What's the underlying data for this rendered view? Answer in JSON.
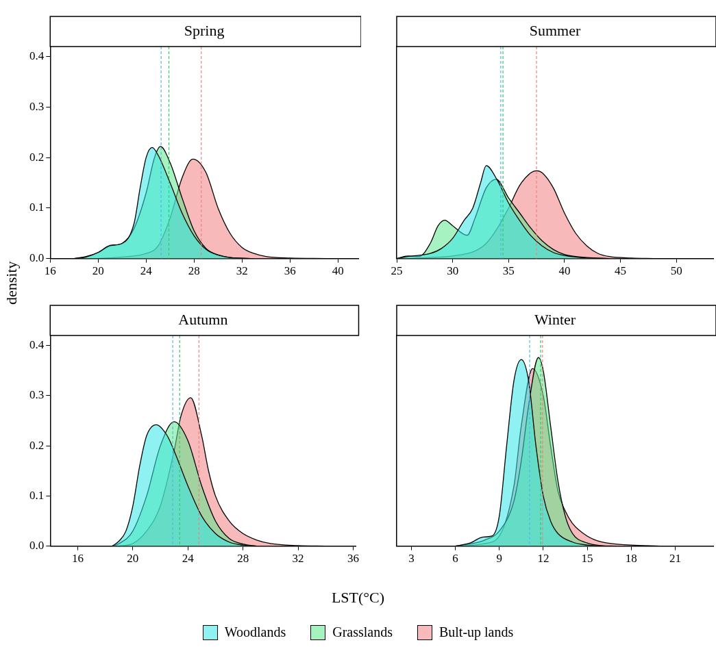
{
  "chart_data": [
    {
      "type": "area",
      "title": "Spring",
      "ylabel": "density",
      "xlim": [
        16,
        41.7
      ],
      "xticks": [
        16,
        20,
        24,
        28,
        32,
        36,
        40
      ],
      "ylim": [
        0,
        0.42
      ],
      "yticks": [
        {
          "value": 0,
          "label": "0.0"
        },
        {
          "value": 0.1,
          "label": "0.1"
        },
        {
          "value": 0.2,
          "label": "0.2"
        },
        {
          "value": 0.3,
          "label": "0.3"
        },
        {
          "value": 0.4,
          "label": "0.4"
        }
      ],
      "legend": "bottom",
      "series": [
        {
          "name": "Woodlands",
          "color": "#33e6e6",
          "x": [
            18,
            19,
            20,
            21,
            22,
            23,
            23.5,
            24,
            24.5,
            25,
            26,
            27,
            28,
            29,
            30,
            31,
            33
          ],
          "values": [
            0,
            0.003,
            0.012,
            0.026,
            0.03,
            0.07,
            0.14,
            0.2,
            0.22,
            0.205,
            0.15,
            0.09,
            0.045,
            0.018,
            0.007,
            0.002,
            0
          ]
        },
        {
          "name": "Grasslands",
          "color": "#5ee88e",
          "x": [
            18,
            19,
            20,
            21,
            22,
            23,
            24,
            24.7,
            25.2,
            26,
            27,
            28,
            29,
            30,
            31,
            33
          ],
          "values": [
            0,
            0.004,
            0.012,
            0.025,
            0.03,
            0.06,
            0.13,
            0.2,
            0.222,
            0.19,
            0.12,
            0.055,
            0.02,
            0.007,
            0.002,
            0
          ]
        },
        {
          "name": "Bult-up lands",
          "color": "#f08080",
          "x": [
            20,
            22,
            24,
            25,
            26,
            27,
            27.9,
            29,
            30,
            31,
            32,
            33,
            34,
            36,
            39
          ],
          "values": [
            0,
            0.003,
            0.01,
            0.025,
            0.08,
            0.16,
            0.197,
            0.17,
            0.1,
            0.05,
            0.022,
            0.01,
            0.004,
            0.001,
            0
          ]
        }
      ],
      "ref_lines": [
        {
          "axis": "x",
          "value": 25.25,
          "color": "#56b4e9",
          "line_style": "dashed"
        },
        {
          "axis": "x",
          "value": 25.9,
          "color": "#2ecc71",
          "line_style": "dashed"
        },
        {
          "axis": "x",
          "value": 28.6,
          "color": "#f08080",
          "line_style": "dashed"
        }
      ]
    },
    {
      "type": "area",
      "title": "Summer",
      "tick_labels": "x",
      "xlim": [
        25,
        53.3
      ],
      "xticks": [
        25,
        30,
        35,
        40,
        45,
        50
      ],
      "ylim": [
        0,
        0.42
      ],
      "series": [
        {
          "color": "#33e6e6",
          "x": [
            25,
            26,
            28,
            29,
            30,
            31,
            31.8,
            32.5,
            33,
            34,
            35,
            36,
            37,
            38,
            39,
            40,
            42,
            44
          ],
          "values": [
            0,
            0.004,
            0.01,
            0.02,
            0.04,
            0.075,
            0.1,
            0.15,
            0.184,
            0.155,
            0.11,
            0.075,
            0.045,
            0.025,
            0.012,
            0.006,
            0.001,
            0
          ]
        },
        {
          "color": "#5ee88e",
          "x": [
            25,
            26,
            27,
            28,
            28.7,
            29.3,
            30,
            31.3,
            32,
            33,
            33.9,
            35,
            36,
            37,
            38,
            39,
            40,
            42,
            44
          ],
          "values": [
            0,
            0.005,
            0.004,
            0.03,
            0.065,
            0.076,
            0.065,
            0.046,
            0.08,
            0.14,
            0.157,
            0.12,
            0.09,
            0.06,
            0.035,
            0.018,
            0.008,
            0.002,
            0
          ]
        },
        {
          "color": "#f08080",
          "x": [
            26,
            28,
            30,
            32,
            33,
            34,
            35,
            36,
            37,
            37.5,
            38,
            39,
            40,
            41,
            42,
            43,
            44,
            46,
            48
          ],
          "values": [
            0,
            0.002,
            0.005,
            0.015,
            0.03,
            0.06,
            0.1,
            0.145,
            0.17,
            0.174,
            0.17,
            0.14,
            0.09,
            0.05,
            0.025,
            0.01,
            0.004,
            0.001,
            0
          ]
        }
      ],
      "ref_lines": [
        {
          "axis": "x",
          "value": 34.3,
          "color": "#56b4e9",
          "line_style": "dashed"
        },
        {
          "axis": "x",
          "value": 34.5,
          "color": "#2ecc71",
          "line_style": "dashed"
        },
        {
          "axis": "x",
          "value": 37.5,
          "color": "#f08080",
          "line_style": "dashed"
        }
      ]
    },
    {
      "type": "area",
      "title": "Autumn",
      "xlabel": "LST(°C)",
      "xlim": [
        14,
        36.2
      ],
      "xticks": [
        16,
        20,
        24,
        28,
        32,
        36
      ],
      "ylim": [
        0,
        0.42
      ],
      "yticks": [
        {
          "value": 0,
          "label": "0.0"
        },
        {
          "value": 0.1,
          "label": "0.1"
        },
        {
          "value": 0.2,
          "label": "0.2"
        },
        {
          "value": 0.3,
          "label": "0.3"
        },
        {
          "value": 0.4,
          "label": "0.4"
        }
      ],
      "series": [
        {
          "color": "#33e6e6",
          "x": [
            18.5,
            19,
            19.5,
            20,
            20.5,
            21,
            21.7,
            22.5,
            23,
            24,
            25,
            26,
            27,
            28,
            29
          ],
          "values": [
            0,
            0.01,
            0.03,
            0.08,
            0.16,
            0.22,
            0.242,
            0.22,
            0.19,
            0.12,
            0.06,
            0.025,
            0.008,
            0.002,
            0
          ]
        },
        {
          "color": "#5ee88e",
          "x": [
            18.5,
            19,
            20,
            21,
            22,
            23,
            24,
            25,
            26,
            27,
            28,
            29
          ],
          "values": [
            0,
            0.005,
            0.03,
            0.1,
            0.2,
            0.248,
            0.21,
            0.12,
            0.05,
            0.015,
            0.004,
            0
          ]
        },
        {
          "color": "#f08080",
          "x": [
            19,
            20,
            21,
            22,
            23,
            23.5,
            24.2,
            25,
            25.5,
            26,
            27,
            28,
            29,
            30,
            32,
            34
          ],
          "values": [
            0,
            0.005,
            0.03,
            0.08,
            0.19,
            0.26,
            0.296,
            0.22,
            0.15,
            0.1,
            0.05,
            0.025,
            0.012,
            0.005,
            0.001,
            0
          ]
        }
      ],
      "ref_lines": [
        {
          "axis": "x",
          "value": 22.9,
          "color": "#56b4e9",
          "line_style": "dashed"
        },
        {
          "axis": "x",
          "value": 23.4,
          "color": "#2ecc71",
          "line_style": "dashed"
        },
        {
          "axis": "x",
          "value": 24.8,
          "color": "#f08080",
          "line_style": "dashed"
        }
      ]
    },
    {
      "type": "area",
      "title": "Winter",
      "tick_labels": "x",
      "xlim": [
        2,
        23.6
      ],
      "xticks": [
        3,
        6,
        9,
        12,
        15,
        18,
        21
      ],
      "ylim": [
        0,
        0.42
      ],
      "series": [
        {
          "color": "#33e6e6",
          "x": [
            6,
            7,
            7.9,
            8.5,
            9,
            9.5,
            10,
            10.5,
            11,
            11.5,
            12,
            12.5,
            13,
            14,
            15,
            16
          ],
          "values": [
            0,
            0.006,
            0.018,
            0.02,
            0.06,
            0.2,
            0.33,
            0.372,
            0.33,
            0.2,
            0.1,
            0.05,
            0.025,
            0.008,
            0.002,
            0
          ]
        },
        {
          "color": "#5ee88e",
          "x": [
            6,
            7,
            8,
            9,
            10,
            10.5,
            11,
            11.67,
            12,
            12.5,
            13,
            13.5,
            14,
            15,
            16,
            17
          ],
          "values": [
            0,
            0.004,
            0.012,
            0.03,
            0.09,
            0.17,
            0.28,
            0.376,
            0.35,
            0.24,
            0.13,
            0.06,
            0.025,
            0.006,
            0.001,
            0
          ]
        },
        {
          "color": "#f08080",
          "x": [
            6.5,
            8,
            9,
            10,
            10.5,
            11.27,
            12,
            12.5,
            13,
            13.5,
            14,
            15,
            16,
            18,
            20
          ],
          "values": [
            0,
            0.005,
            0.02,
            0.12,
            0.24,
            0.354,
            0.3,
            0.2,
            0.11,
            0.07,
            0.045,
            0.02,
            0.008,
            0.002,
            0
          ]
        }
      ],
      "ref_lines": [
        {
          "axis": "x",
          "value": 11.07,
          "color": "#56b4e9",
          "line_style": "dashed"
        },
        {
          "axis": "x",
          "value": 11.82,
          "color": "#2ecc71",
          "line_style": "dashed"
        },
        {
          "axis": "x",
          "value": 11.95,
          "color": "#f08080",
          "line_style": "dashed"
        }
      ]
    }
  ]
}
